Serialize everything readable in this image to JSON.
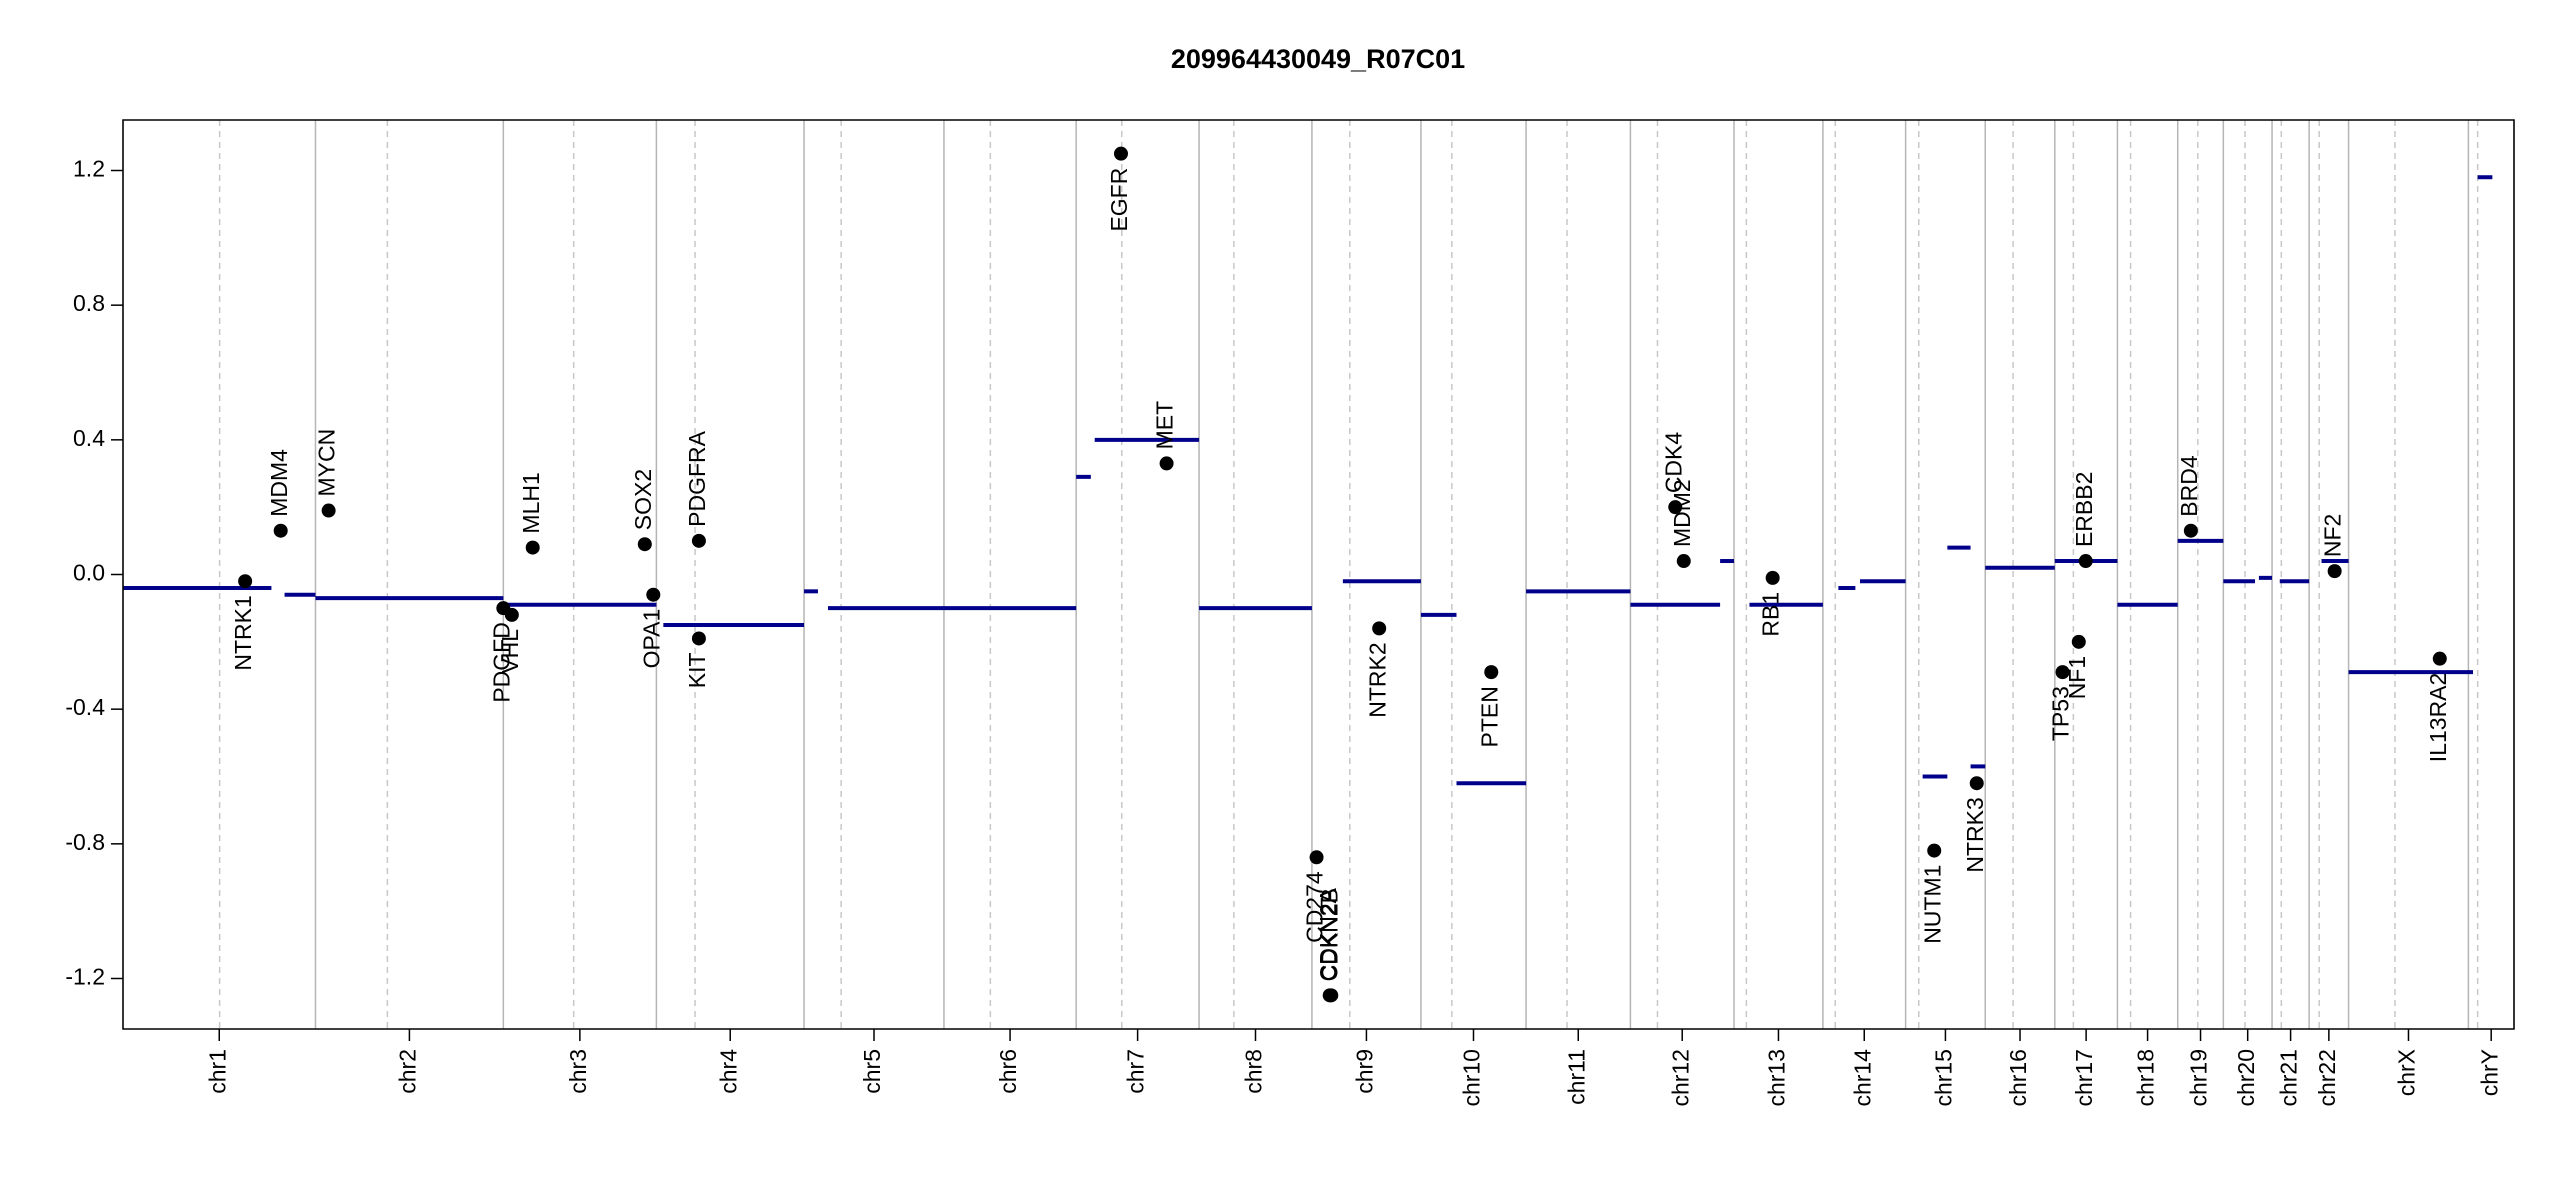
{
  "chart_data": {
    "type": "cnv",
    "title": "209964430049_R07C01",
    "xlim": [
      0,
      3093
    ],
    "ylim": [
      -1.35,
      1.35
    ],
    "yticks": [
      -1.2,
      -0.8,
      -0.4,
      {
        "value": 0,
        "label": "0.0"
      },
      0.4,
      0.8,
      1.2
    ],
    "chromosomes": [
      "chr1",
      "chr2",
      "chr3",
      "chr4",
      "chr5",
      "chr6",
      "chr7",
      "chr8",
      "chr9",
      "chr10",
      "chr11",
      "chr12",
      "chr13",
      "chr14",
      "chr15",
      "chr16",
      "chr17",
      "chr18",
      "chr19",
      "chr20",
      "chr21",
      "chr22",
      "chrX",
      "chrY"
    ],
    "boundaries": [
      0,
      249,
      492,
      690,
      881,
      1062,
      1233,
      1392,
      1538,
      1679,
      1815,
      1950,
      2084,
      2199,
      2306,
      2409,
      2499,
      2580,
      2658,
      2717,
      2780,
      2828,
      2879,
      3034,
      3093
    ],
    "centromeres": [
      125,
      342,
      583,
      740,
      929,
      1122,
      1292,
      1437,
      1587,
      1719,
      1868,
      1985,
      2100,
      2215,
      2323,
      2445,
      2523,
      2597,
      2684,
      2745,
      2792,
      2841,
      2939,
      3046
    ],
    "segments": {
      "start": [
        0,
        209,
        249,
        492,
        699,
        881,
        912,
        1062,
        1233,
        1257,
        1392,
        1578,
        1679,
        1725,
        1815,
        1950,
        2066,
        2104,
        2219,
        2247,
        2328,
        2360,
        2390,
        2409,
        2499,
        2580,
        2658,
        2717,
        2763,
        2790,
        2844,
        2879,
        3046
      ],
      "end": [
        192,
        249,
        492,
        690,
        881,
        899,
        1062,
        1233,
        1252,
        1392,
        1538,
        1679,
        1725,
        1815,
        1950,
        2066,
        2084,
        2199,
        2241,
        2306,
        2360,
        2390,
        2409,
        2499,
        2580,
        2658,
        2717,
        2758,
        2780,
        2828,
        2879,
        3040,
        3065
      ],
      "values": [
        -0.04,
        -0.06,
        -0.07,
        -0.09,
        -0.15,
        -0.05,
        -0.1,
        -0.1,
        0.29,
        0.4,
        -0.1,
        -0.02,
        -0.12,
        -0.62,
        -0.05,
        -0.09,
        0.04,
        -0.09,
        -0.04,
        -0.02,
        -0.6,
        0.08,
        -0.57,
        0.02,
        0.04,
        -0.09,
        0.1,
        -0.02,
        -0.01,
        -0.02,
        0.04,
        -0.29,
        1.18
      ],
      "color": "#00008b"
    },
    "genes": {
      "names": [
        "NTRK1",
        "MDM4",
        "MYCN",
        "PDGFD",
        "VHL",
        "MLH1",
        "SOX2",
        "OPA1",
        "PDGFRA",
        "KIT",
        "EGFR",
        "MET",
        "CD274",
        "CDKN2A",
        "CDKN2B",
        "NTRK2",
        "PTEN",
        "CDK4",
        "MDM2",
        "RB1",
        "NUTM1",
        "NTRK3",
        "TP53",
        "NF1",
        "ERBB2",
        "BRD4",
        "NF2",
        "IL13RA2"
      ],
      "x": [
        158,
        204,
        266,
        492,
        503,
        530,
        675,
        686,
        745,
        745,
        1291,
        1350,
        1544,
        1561,
        1563,
        1625,
        1770,
        2008,
        2019,
        2134,
        2343,
        2398,
        2509,
        2530,
        2539,
        2675,
        2861,
        2997
      ],
      "values": [
        -0.02,
        0.13,
        0.19,
        -0.1,
        -0.12,
        0.08,
        0.09,
        -0.06,
        0.1,
        -0.19,
        1.25,
        0.33,
        -0.84,
        -1.25,
        -1.25,
        -0.16,
        -0.29,
        0.2,
        0.04,
        -0.01,
        -0.82,
        -0.62,
        -0.29,
        -0.2,
        0.04,
        0.13,
        0.01,
        -0.25
      ],
      "color": "#000000"
    }
  }
}
